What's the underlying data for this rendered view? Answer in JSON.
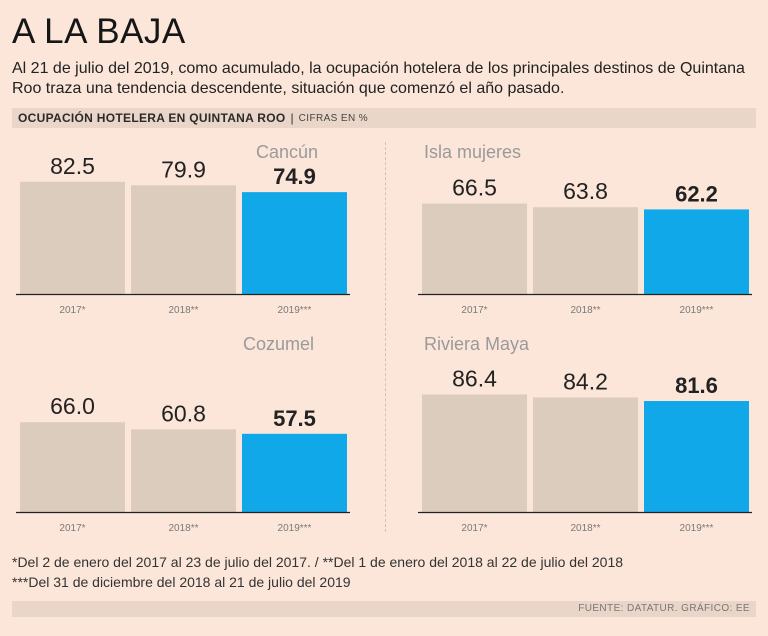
{
  "title": "A LA BAJA",
  "subtitle": "Al 21 de julio del 2019, como acumulado, la ocupación hotelera de los principales destinos de Quintana Roo traza una tendencia descendente, situación que comenzó el año pasado.",
  "band": {
    "heading": "OCUPACIÓN HOTELERA EN QUINTANA ROO",
    "separator": "|",
    "units": "CIFRAS EN %"
  },
  "colors": {
    "background": "#fbe6d9",
    "bar_past": "#dcccbd",
    "bar_current": "#10a8e8",
    "axis": "#222222",
    "panel_title": "#9a9a9a",
    "value_text": "#222222",
    "tick_text": "#7a7a7a"
  },
  "chart_data": [
    {
      "type": "bar",
      "title": "Cancún",
      "categories": [
        "2017*",
        "2018**",
        "2019***"
      ],
      "values": [
        82.5,
        79.9,
        74.9
      ],
      "value_labels": [
        "82.5",
        "79.9",
        "74.9"
      ],
      "ylim": [
        0,
        100
      ],
      "xlabel": "",
      "ylabel": ""
    },
    {
      "type": "bar",
      "title": "Isla mujeres",
      "categories": [
        "2017*",
        "2018**",
        "2019***"
      ],
      "values": [
        66.5,
        63.8,
        62.2
      ],
      "value_labels": [
        "66.5",
        "63.8",
        "62.2"
      ],
      "ylim": [
        0,
        100
      ],
      "xlabel": "",
      "ylabel": ""
    },
    {
      "type": "bar",
      "title": "Cozumel",
      "categories": [
        "2017*",
        "2018**",
        "2019***"
      ],
      "values": [
        66.0,
        60.8,
        57.5
      ],
      "value_labels": [
        "66.0",
        "60.8",
        "57.5"
      ],
      "ylim": [
        0,
        100
      ],
      "xlabel": "",
      "ylabel": ""
    },
    {
      "type": "bar",
      "title": "Riviera Maya",
      "categories": [
        "2017*",
        "2018**",
        "2019***"
      ],
      "values": [
        86.4,
        84.2,
        81.6
      ],
      "value_labels": [
        "86.4",
        "84.2",
        "81.6"
      ],
      "ylim": [
        0,
        100
      ],
      "xlabel": "",
      "ylabel": ""
    }
  ],
  "footnotes": [
    "*Del 2 de enero del 2017 al 23 de julio del 2017. / **Del 1 de enero del 2018 al 22 de julio del 2018",
    "***Del 31 de diciembre del 2018 al 21 de julio del 2019"
  ],
  "source": "FUENTE: DATATUR.  GRÁFICO: EE"
}
